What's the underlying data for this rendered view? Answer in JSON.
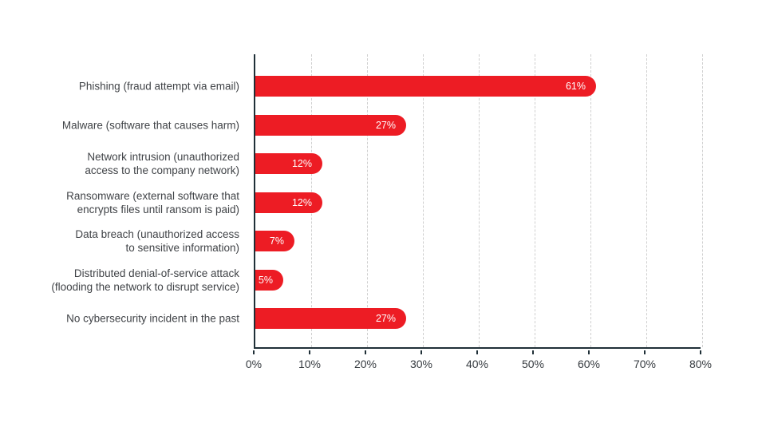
{
  "chart_data": {
    "type": "bar",
    "orientation": "horizontal",
    "title": "",
    "xlabel": "",
    "ylabel": "",
    "xlim": [
      0,
      80
    ],
    "x_ticks": [
      "0%",
      "10%",
      "20%",
      "30%",
      "40%",
      "50%",
      "60%",
      "70%",
      "80%"
    ],
    "grid": "vertical-dashed",
    "legend": "none",
    "categories": [
      [
        "Phishing (fraud attempt via email)"
      ],
      [
        "Malware (software that causes harm)"
      ],
      [
        "Network intrusion (unauthorized",
        "access to the company network)"
      ],
      [
        "Ransomware (external software that",
        "encrypts files until ransom is paid)"
      ],
      [
        "Data breach (unauthorized access",
        "to sensitive information)"
      ],
      [
        "Distributed denial-of-service attack",
        "(flooding the network to disrupt service)"
      ],
      [
        "No cybersecurity incident in the past"
      ]
    ],
    "values": [
      61,
      27,
      12,
      12,
      7,
      5,
      27
    ],
    "value_labels": [
      "61%",
      "27%",
      "12%",
      "12%",
      "7%",
      "5%",
      "27%"
    ],
    "colors": {
      "bar": "#ED1C24",
      "value_label": "#ffffff",
      "axis": "#203038",
      "grid": "#cfcfcf",
      "category_label": "#404347",
      "tick_label": "#363b40",
      "background": "#ffffff"
    }
  }
}
